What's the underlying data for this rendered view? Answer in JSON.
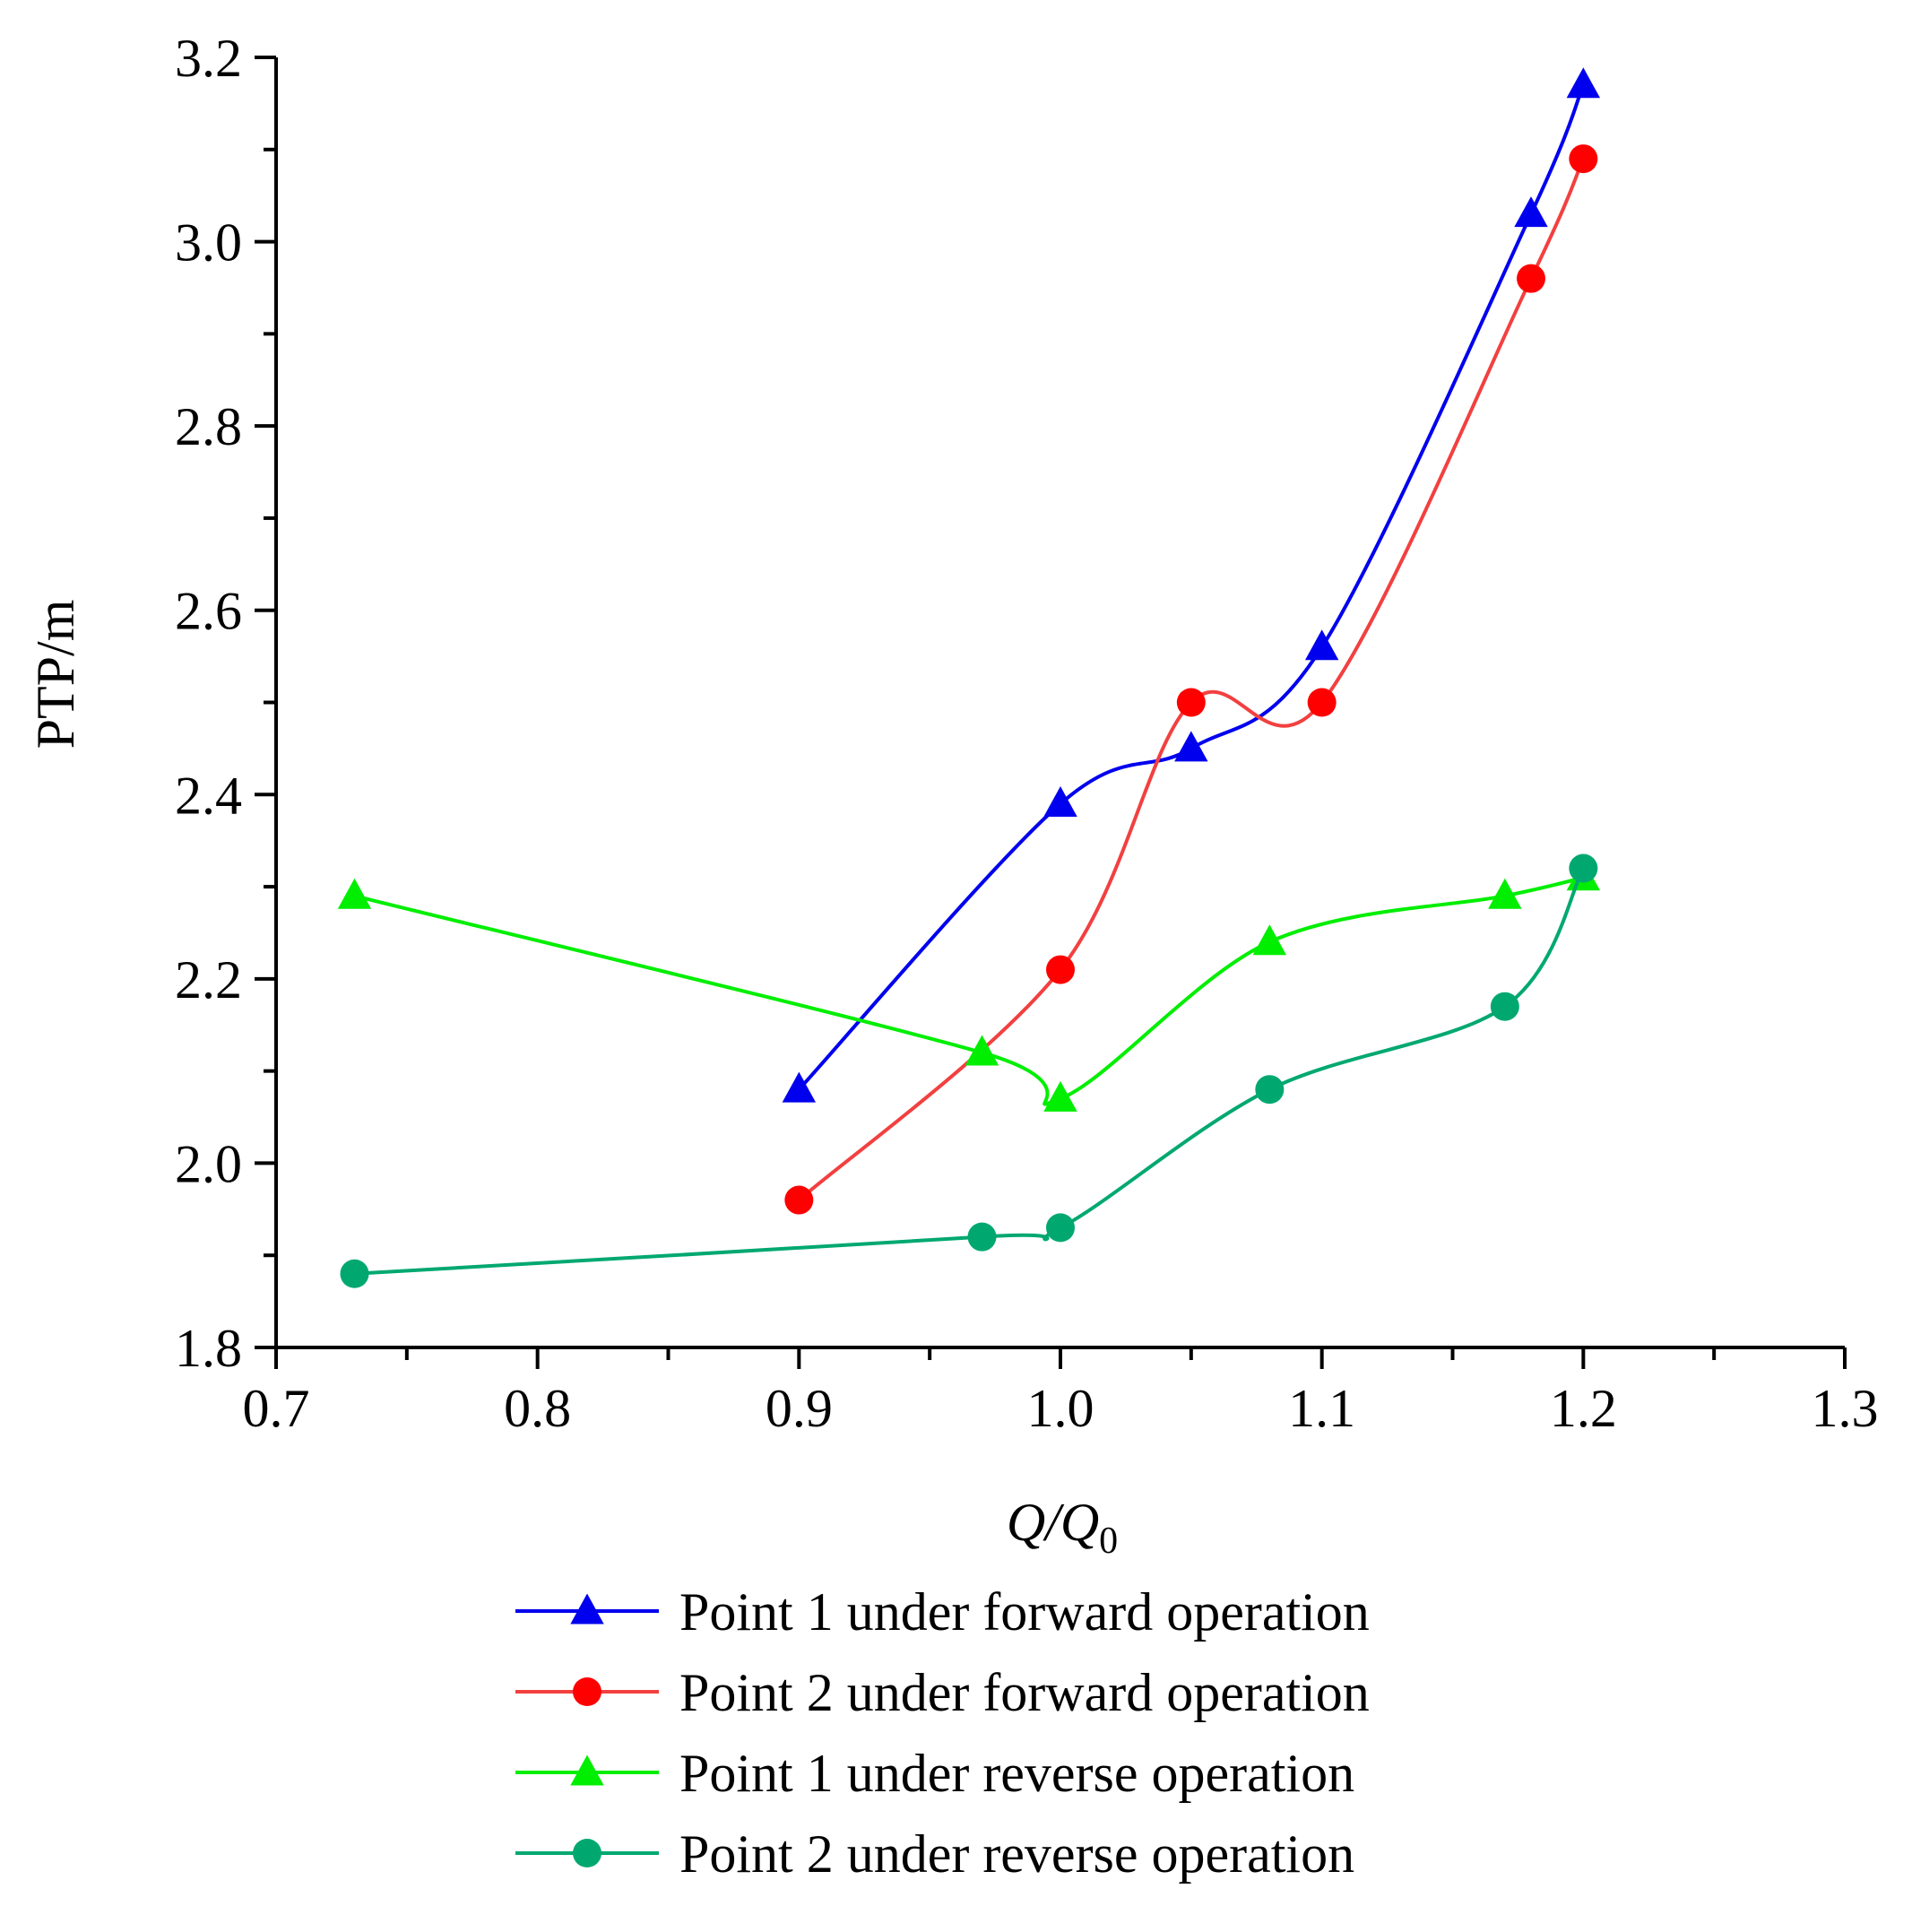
{
  "chart_data": {
    "type": "line",
    "xlabel": "Q/Q",
    "xlabel_sub": "0",
    "ylabel": "PTP/m",
    "xlim": [
      0.7,
      1.3
    ],
    "ylim": [
      1.8,
      3.2
    ],
    "xticks": [
      "0.7",
      "0.8",
      "0.9",
      "1.0",
      "1.1",
      "1.2",
      "1.3"
    ],
    "yticks": [
      "1.8",
      "2.0",
      "2.2",
      "2.4",
      "2.6",
      "2.8",
      "3.0",
      "3.2"
    ],
    "grid": false,
    "legend_position": "bottom",
    "series": [
      {
        "name": "Point 1 under forward operation",
        "color": "#0000ee",
        "marker": "triangle",
        "x": [
          0.9,
          1.0,
          1.05,
          1.1,
          1.18,
          1.2
        ],
        "y": [
          2.08,
          2.39,
          2.45,
          2.56,
          3.03,
          3.17
        ]
      },
      {
        "name": "Point 2 under forward operation",
        "color": "#ff0000",
        "line_color": "#f24040",
        "marker": "circle",
        "x": [
          0.9,
          1.0,
          1.05,
          1.1,
          1.18,
          1.2
        ],
        "y": [
          1.96,
          2.21,
          2.5,
          2.5,
          2.96,
          3.09
        ]
      },
      {
        "name": "Point 1 under reverse operation",
        "color": "#00ee00",
        "marker": "triangle",
        "x": [
          0.73,
          0.97,
          1.0,
          1.08,
          1.17,
          1.2
        ],
        "y": [
          2.29,
          2.12,
          2.07,
          2.24,
          2.29,
          2.31
        ]
      },
      {
        "name": "Point 2 under reverse operation",
        "color": "#00a870",
        "marker": "circle",
        "x": [
          0.73,
          0.97,
          1.0,
          1.08,
          1.17,
          1.2
        ],
        "y": [
          1.88,
          1.92,
          1.93,
          2.08,
          2.17,
          2.32
        ]
      }
    ]
  }
}
